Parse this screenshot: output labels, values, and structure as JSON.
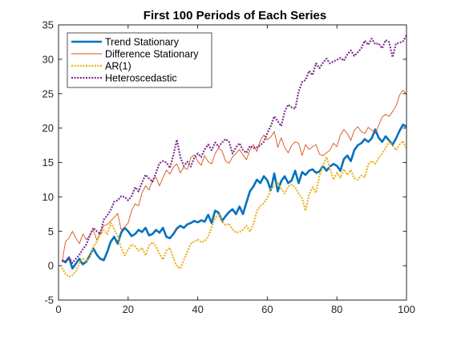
{
  "chart_data": {
    "type": "line",
    "title": "First 100 Periods of Each Series",
    "xlabel": "",
    "ylabel": "",
    "xlim": [
      0,
      100
    ],
    "ylim": [
      -5,
      35
    ],
    "xticks": [
      0,
      20,
      40,
      60,
      80,
      100
    ],
    "yticks": [
      -5,
      0,
      5,
      10,
      15,
      20,
      25,
      30,
      35
    ],
    "grid": false,
    "legend_position": "top-left",
    "x": [
      1,
      2,
      3,
      4,
      5,
      6,
      7,
      8,
      9,
      10,
      11,
      12,
      13,
      14,
      15,
      16,
      17,
      18,
      19,
      20,
      21,
      22,
      23,
      24,
      25,
      26,
      27,
      28,
      29,
      30,
      31,
      32,
      33,
      34,
      35,
      36,
      37,
      38,
      39,
      40,
      41,
      42,
      43,
      44,
      45,
      46,
      47,
      48,
      49,
      50,
      51,
      52,
      53,
      54,
      55,
      56,
      57,
      58,
      59,
      60,
      61,
      62,
      63,
      64,
      65,
      66,
      67,
      68,
      69,
      70,
      71,
      72,
      73,
      74,
      75,
      76,
      77,
      78,
      79,
      80,
      81,
      82,
      83,
      84,
      85,
      86,
      87,
      88,
      89,
      90,
      91,
      92,
      93,
      94,
      95,
      96,
      97,
      98,
      99,
      100
    ],
    "series": [
      {
        "name": "Trend Stationary",
        "color": "#0072BD",
        "style": "solid-thick",
        "values": [
          0.8,
          0.5,
          1.2,
          -0.4,
          0.3,
          1.0,
          0.2,
          0.6,
          1.5,
          2.5,
          1.6,
          1.0,
          0.8,
          2.0,
          3.5,
          4.2,
          3.2,
          4.8,
          5.5,
          5.0,
          4.3,
          4.6,
          5.2,
          4.9,
          5.5,
          4.4,
          4.6,
          5.2,
          4.8,
          5.5,
          4.2,
          4.0,
          4.6,
          5.4,
          5.8,
          5.5,
          6.0,
          6.2,
          6.5,
          6.3,
          6.6,
          6.4,
          7.4,
          6.2,
          8.0,
          7.7,
          6.5,
          7.2,
          7.8,
          8.2,
          7.5,
          8.6,
          7.5,
          9.2,
          10.8,
          11.5,
          12.5,
          12.0,
          13.0,
          12.4,
          11.0,
          13.4,
          10.8,
          12.3,
          13.0,
          12.0,
          12.4,
          13.8,
          12.0,
          13.6,
          13.2,
          13.8,
          14.0,
          13.5,
          13.7,
          14.5,
          13.8,
          14.4,
          14.8,
          14.5,
          13.8,
          15.5,
          16.0,
          15.2,
          16.8,
          17.5,
          17.8,
          18.4,
          18.0,
          18.5,
          19.8,
          18.6,
          18.0,
          18.8,
          18.2,
          17.6,
          18.5,
          19.6,
          20.5,
          20.2
        ]
      },
      {
        "name": "Difference Stationary",
        "color": "#D95319",
        "style": "solid-thin",
        "values": [
          0.5,
          3.5,
          4.0,
          5.0,
          4.0,
          3.2,
          4.6,
          3.8,
          4.4,
          5.2,
          3.7,
          4.9,
          5.8,
          6.0,
          6.5,
          7.0,
          7.6,
          5.2,
          5.6,
          6.2,
          8.0,
          9.0,
          8.7,
          10.6,
          11.6,
          11.0,
          12.4,
          12.9,
          11.6,
          12.8,
          13.9,
          13.3,
          14.3,
          14.8,
          13.5,
          14.3,
          14.0,
          15.7,
          16.1,
          15.2,
          14.6,
          16.0,
          15.1,
          14.8,
          16.3,
          17.1,
          16.7,
          15.2,
          14.9,
          15.8,
          16.3,
          16.9,
          16.1,
          15.4,
          16.8,
          17.6,
          16.6,
          18.2,
          19.0,
          18.3,
          18.7,
          19.5,
          17.2,
          18.6,
          17.2,
          16.4,
          17.5,
          18.0,
          17.8,
          16.0,
          17.6,
          16.9,
          17.3,
          17.6,
          16.2,
          16.0,
          16.4,
          16.8,
          17.8,
          17.3,
          19.0,
          19.8,
          19.2,
          18.2,
          19.7,
          20.2,
          19.5,
          19.2,
          20.1,
          19.7,
          19.2,
          20.4,
          21.6,
          22.0,
          21.7,
          22.4,
          23.2,
          24.8,
          25.5,
          24.9
        ]
      },
      {
        "name": "AR(1)",
        "color": "#EDB120",
        "style": "dotted",
        "values": [
          -0.3,
          -1.2,
          -1.6,
          -1.4,
          -0.8,
          0.3,
          1.0,
          0.6,
          1.2,
          2.7,
          3.5,
          4.5,
          5.2,
          4.6,
          6.2,
          5.3,
          4.3,
          2.6,
          1.5,
          2.3,
          3.1,
          2.8,
          2.2,
          2.6,
          1.5,
          2.9,
          3.4,
          2.8,
          1.7,
          0.9,
          2.2,
          2.6,
          1.1,
          -0.1,
          -0.4,
          0.8,
          2.0,
          3.2,
          3.5,
          3.8,
          3.4,
          3.6,
          4.2,
          5.6,
          6.9,
          7.6,
          6.4,
          5.9,
          6.1,
          5.3,
          4.8,
          4.9,
          5.2,
          5.8,
          5.0,
          6.0,
          7.9,
          8.7,
          9.1,
          9.8,
          11.1,
          11.6,
          12.2,
          11.2,
          10.5,
          11.5,
          11.8,
          11.4,
          10.5,
          9.8,
          8.0,
          10.3,
          11.4,
          10.6,
          13.1,
          14.5,
          15.8,
          14.2,
          12.5,
          13.5,
          12.8,
          14.0,
          13.2,
          13.9,
          12.7,
          12.5,
          13.1,
          12.9,
          14.7,
          15.2,
          14.8,
          15.7,
          16.3,
          17.1,
          18.0,
          17.5,
          16.8,
          17.6,
          18.1,
          17.0
        ]
      },
      {
        "name": "Heteroscedastic",
        "color": "#7E2F8E",
        "style": "dotted",
        "values": [
          0.8,
          0.6,
          1.2,
          0.4,
          1.0,
          1.6,
          2.4,
          3.1,
          4.4,
          5.5,
          5.0,
          4.6,
          6.7,
          7.3,
          8.1,
          9.3,
          9.5,
          10.1,
          10.0,
          9.5,
          10.1,
          11.4,
          10.8,
          12.1,
          13.2,
          12.7,
          12.2,
          13.5,
          14.9,
          15.2,
          15.0,
          14.2,
          16.1,
          18.3,
          15.8,
          14.5,
          15.1,
          14.4,
          15.7,
          16.3,
          15.8,
          16.9,
          17.6,
          16.8,
          17.9,
          17.3,
          17.9,
          18.4,
          18.0,
          16.3,
          17.2,
          17.8,
          16.8,
          16.4,
          17.4,
          17.1,
          17.2,
          17.5,
          18.0,
          19.3,
          20.3,
          21.7,
          21.0,
          20.3,
          22.4,
          23.4,
          23.0,
          22.8,
          25.3,
          26.7,
          27.0,
          28.3,
          27.7,
          29.4,
          28.7,
          29.5,
          30.1,
          29.4,
          29.7,
          29.9,
          30.2,
          29.8,
          30.7,
          31.3,
          30.5,
          31.0,
          31.6,
          32.7,
          32.1,
          33.0,
          32.2,
          32.3,
          31.6,
          32.8,
          32.5,
          30.3,
          32.3,
          32.4,
          32.6,
          33.5
        ]
      }
    ]
  }
}
